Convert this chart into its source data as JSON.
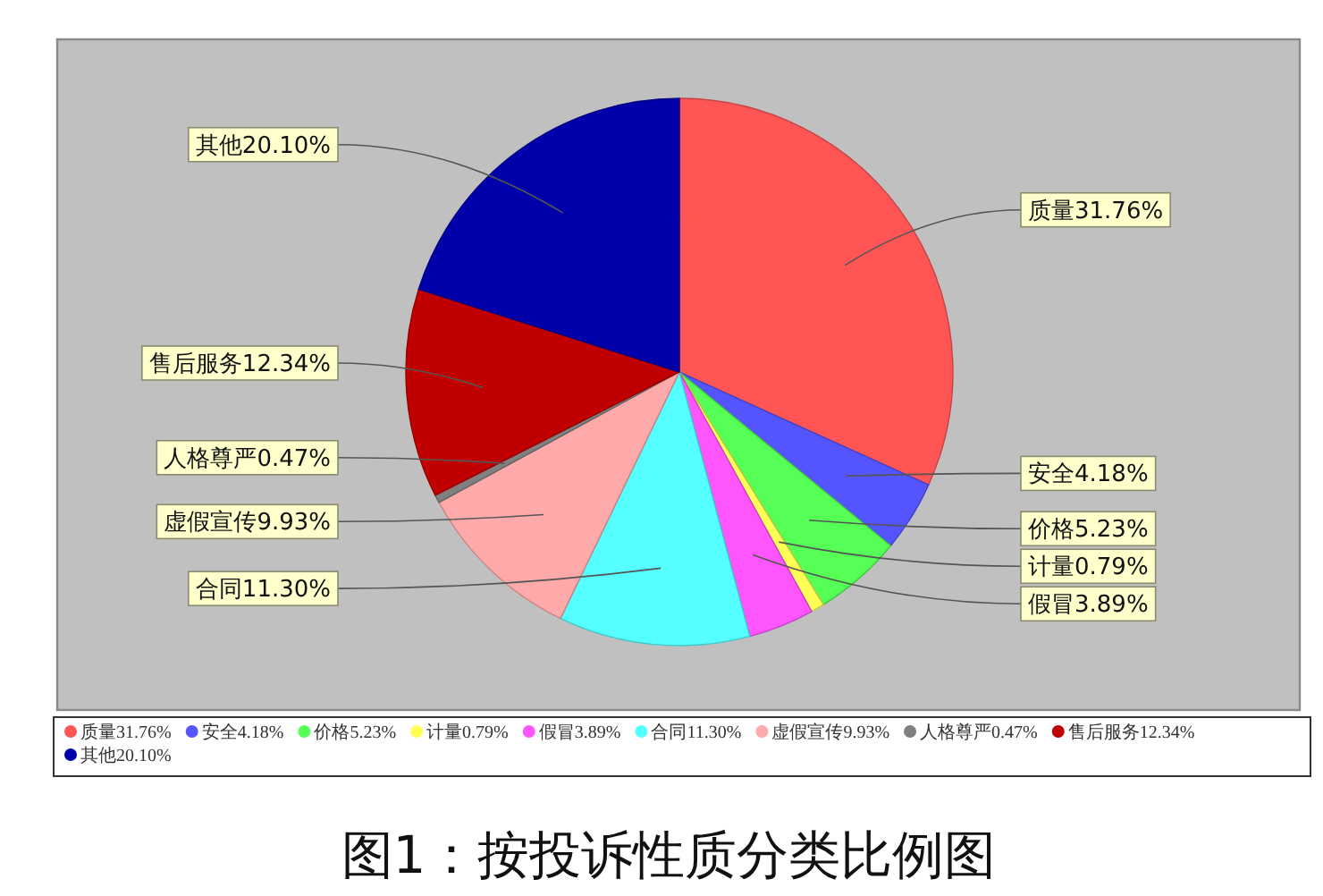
{
  "chart_data": {
    "type": "pie",
    "title": "图1：按投诉性质分类比例图",
    "categories": [
      "质量31.76%",
      "安全4.18%",
      "价格5.23%",
      "计量0.79%",
      "假冒3.89%",
      "合同11.30%",
      "虚假宣传9.93%",
      "人格尊严0.47%",
      "售后服务12.34%",
      "其他20.10%"
    ],
    "values": [
      31.76,
      4.18,
      5.23,
      0.79,
      3.89,
      11.3,
      9.93,
      0.47,
      12.34,
      20.1
    ],
    "colors": [
      "#ff5555",
      "#5555ff",
      "#55ff55",
      "#ffff55",
      "#ff55ff",
      "#55ffff",
      "#ffaaaa",
      "#808080",
      "#c00000",
      "#0000aa"
    ],
    "legend": "bottom"
  }
}
